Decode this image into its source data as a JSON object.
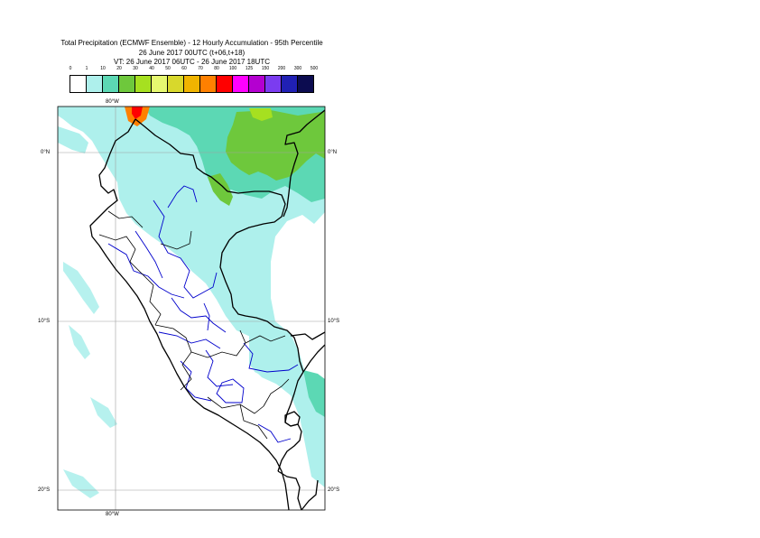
{
  "title": {
    "line1": "Total Precipitation (ECMWF Ensemble) - 12 Hourly Accumulation - 95th Percentile",
    "line2": "26 June 2017 00UTC (t+06,t+18)",
    "line3": "VT: 26 June 2017 06UTC - 26 June 2017 18UTC"
  },
  "legend": {
    "labels": [
      "0",
      "1",
      "10",
      "20",
      "30",
      "40",
      "50",
      "60",
      "70",
      "80",
      "100",
      "125",
      "150",
      "200",
      "300",
      "500"
    ],
    "colors": [
      "#ffffff",
      "#aef0ec",
      "#5cd8b4",
      "#6ec83c",
      "#a6e020",
      "#e6f870",
      "#d8d82c",
      "#f0b400",
      "#ff8000",
      "#ff0000",
      "#ff00ff",
      "#b400d0",
      "#7b3cf0",
      "#2020b4",
      "#0c0c50"
    ]
  },
  "axes": {
    "lon_top": "80°W",
    "lon_bottom": "80°W",
    "lat_0_left": "0°N",
    "lat_0_right": "0°N",
    "lat_10_left": "10°S",
    "lat_10_right": "10°S",
    "lat_20_left": "20°S",
    "lat_20_right": "20°S"
  },
  "map": {
    "region": "Peru",
    "lon_range": [
      -83.5,
      -67.5
    ],
    "lat_range": [
      -21,
      3
    ],
    "gridlines": {
      "lon": [
        -80
      ],
      "lat": [
        0,
        -10,
        -20
      ]
    },
    "colors": {
      "light_cyan": "#aef0ec",
      "teal": "#5cd8b4",
      "green": "#6ec83c",
      "lime": "#a6e020",
      "orange": "#ff8000",
      "red": "#ff0000",
      "province_border": "#0000cc",
      "country_border": "#000000"
    }
  }
}
